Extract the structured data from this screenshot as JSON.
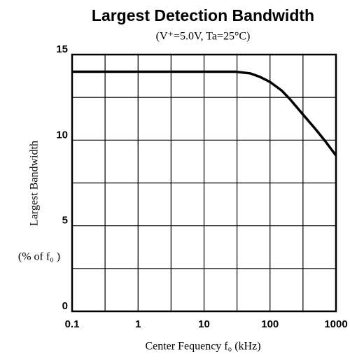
{
  "chart_data": {
    "type": "line",
    "title": "Largest Detection Bandwidth",
    "subtitle": "(V⁺=5.0V,  Ta=25°C)",
    "x_label": "Center Fequency f₀ (kHz)",
    "y_label": "Largest Bandwidth",
    "y_unit_label": "(% of f₀ )",
    "xscale": "log",
    "xlim": [
      0.1,
      1000
    ],
    "ylim": [
      0,
      15
    ],
    "xticks": [
      0.1,
      1,
      10,
      100,
      1000
    ],
    "minor_xticks": [
      0.316,
      3.16,
      31.6,
      316
    ],
    "yticks": [
      0,
      5,
      10,
      15
    ],
    "minor_yticks": [
      2.5,
      7.5,
      12.5
    ],
    "grid": true,
    "x": [
      0.1,
      1,
      10,
      30,
      50,
      70,
      100,
      150,
      200,
      300,
      500,
      700,
      1000
    ],
    "series": [
      {
        "name": "Largest Bandwidth",
        "color": "#000000",
        "values": [
          14,
          14,
          14,
          14,
          13.9,
          13.7,
          13.4,
          12.9,
          12.4,
          11.6,
          10.6,
          9.9,
          9.1
        ]
      }
    ]
  }
}
